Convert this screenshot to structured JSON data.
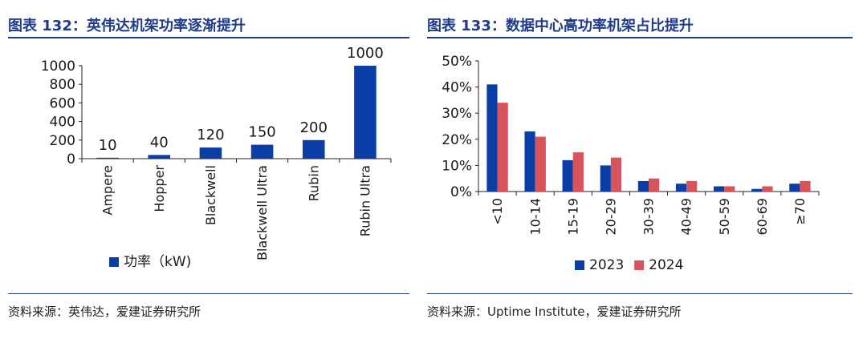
{
  "left": {
    "title": "图表 132：英伟达机架功率逐渐提升",
    "source": "资料来源：英伟达，爱建证券研究所",
    "chart_data": {
      "type": "bar",
      "categories": [
        "Ampere",
        "Hopper",
        "Blackwell",
        "Blackwell Ultra",
        "Rubin",
        "Rubin Ultra"
      ],
      "series": [
        {
          "name": "功率（kW)",
          "values": [
            10,
            40,
            120,
            150,
            200,
            1000
          ],
          "color": "#0a3ea6"
        }
      ],
      "data_labels": [
        "10",
        "40",
        "120",
        "150",
        "200",
        "1000"
      ],
      "y_ticks": [
        "0",
        "200",
        "400",
        "600",
        "800",
        "1000"
      ],
      "ylim": [
        0,
        1000
      ],
      "legend": "bottom",
      "grid": false
    }
  },
  "right": {
    "title": "图表 133：数据中心高功率机架占比提升",
    "source": "资料来源：Uptime Institute，爱建证券研究所",
    "chart_data": {
      "type": "bar",
      "categories": [
        "<10",
        "10-14",
        "15-19",
        "20-29",
        "30-39",
        "40-49",
        "50-59",
        "60-69",
        "≥70"
      ],
      "series": [
        {
          "name": "2023",
          "values": [
            41,
            23,
            12,
            10,
            4,
            3,
            2,
            1,
            3
          ],
          "color": "#0a3ea6"
        },
        {
          "name": "2024",
          "values": [
            34,
            21,
            15,
            13,
            5,
            4,
            2,
            2,
            4
          ],
          "color": "#d9545a"
        }
      ],
      "y_ticks": [
        "0%",
        "10%",
        "20%",
        "30%",
        "40%",
        "50%"
      ],
      "ylim": [
        0,
        50
      ],
      "legend": "bottom",
      "grid": false
    }
  }
}
